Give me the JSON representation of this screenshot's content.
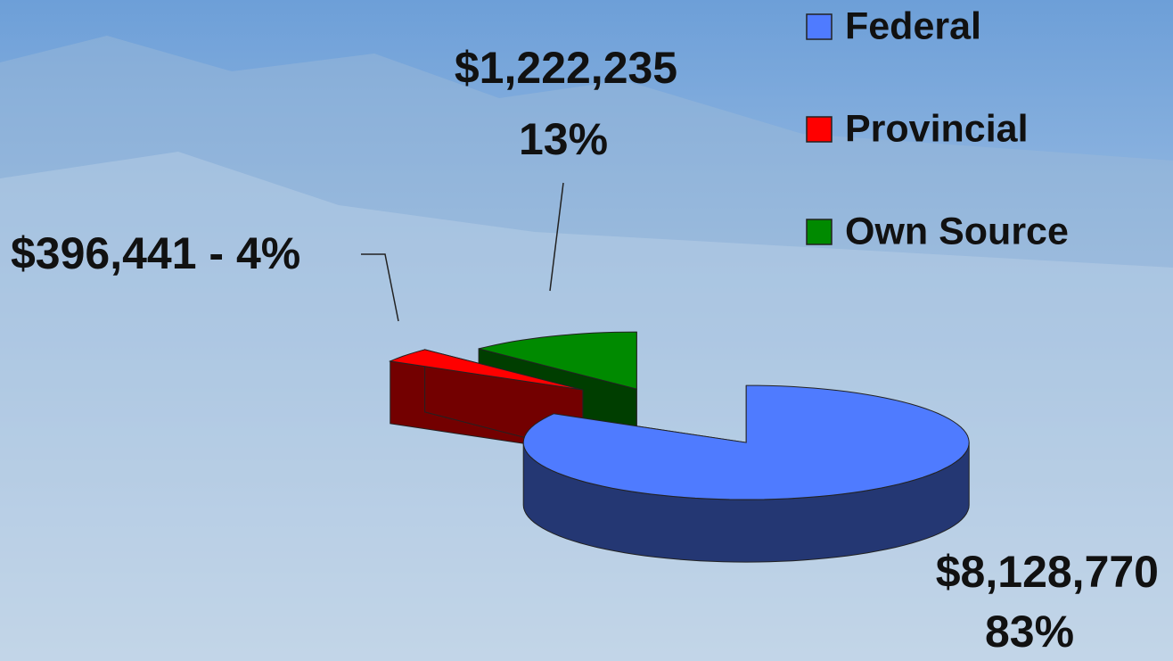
{
  "chart_data": {
    "type": "pie",
    "categories": [
      "Federal",
      "Provincial",
      "Own Source"
    ],
    "values": [
      8128770,
      396441,
      1222235
    ],
    "value_labels": [
      [
        "$8,128,770",
        "83%"
      ],
      [
        "$396,441 - 4%"
      ],
      [
        "$1,222,235",
        "13%"
      ]
    ],
    "colors": [
      "#4f7bff",
      "#ff0000",
      "#008a00"
    ],
    "legend": "top-right"
  }
}
